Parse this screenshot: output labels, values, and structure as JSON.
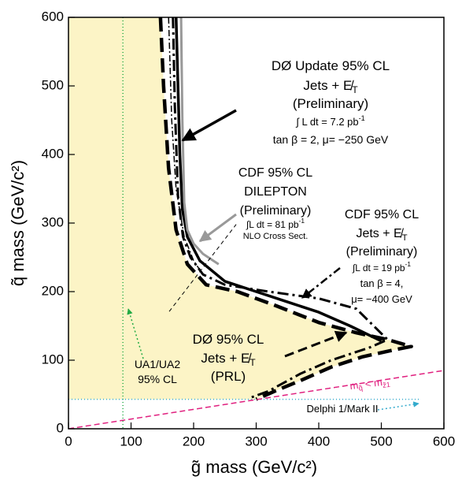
{
  "chart_data": {
    "type": "line",
    "xlabel": "g̃ mass (GeV/c²)",
    "ylabel": "q̃ mass (GeV/c²)",
    "xlim": [
      0,
      600
    ],
    "ylim": [
      0,
      600
    ],
    "xticks": [
      0,
      100,
      200,
      300,
      400,
      500,
      600
    ],
    "yticks": [
      0,
      100,
      200,
      300,
      400,
      500,
      600
    ],
    "region_color": "#fcf4c6",
    "series": [
      {
        "color": "#000000",
        "width": 3.5,
        "dash": "none",
        "x": [
          172,
          175,
          178,
          182,
          190,
          210,
          250,
          300,
          350,
          400,
          450,
          500
        ],
        "values": [
          600,
          500,
          400,
          320,
          280,
          245,
          215,
          200,
          185,
          170,
          150,
          128
        ]
      },
      {
        "color": "#999999",
        "width": 3,
        "dash": "none",
        "x": [
          180,
          182,
          185,
          190,
          200,
          215,
          240
        ],
        "values": [
          600,
          450,
          330,
          290,
          270,
          255,
          240
        ]
      },
      {
        "color": "#000000",
        "width": 3,
        "dash": "14 5 3 5",
        "x": [
          167,
          170,
          175,
          183,
          195,
          215,
          250,
          320,
          400,
          460,
          510,
          480,
          420,
          370,
          320,
          290
        ],
        "values": [
          600,
          470,
          340,
          280,
          250,
          225,
          210,
          200,
          190,
          175,
          130,
          118,
          100,
          80,
          55,
          45
        ]
      },
      {
        "color": "#000000",
        "width": 1.5,
        "dash": "8 3 2 3",
        "x": [
          160,
          165,
          172,
          185,
          200,
          215
        ],
        "values": [
          600,
          450,
          350,
          280,
          245,
          225
        ]
      },
      {
        "color": "#000000",
        "width": 4.5,
        "dash": "18 8",
        "x": [
          147,
          152,
          160,
          172,
          190,
          220,
          270,
          330,
          400,
          460,
          510,
          548,
          520,
          470,
          420,
          370,
          330,
          300
        ],
        "values": [
          600,
          500,
          380,
          290,
          240,
          210,
          200,
          180,
          155,
          140,
          130,
          120,
          115,
          105,
          90,
          70,
          55,
          43
        ]
      },
      {
        "color": "#000000",
        "width": 1,
        "dash": "5 4",
        "x": [
          161,
          268
        ],
        "values": [
          171,
          298
        ]
      },
      {
        "color": "#22aa44",
        "width": 1.5,
        "dash": "1 3",
        "x": [
          87,
          87
        ],
        "values": [
          600,
          0
        ]
      },
      {
        "color": "#33aacc",
        "width": 1.5,
        "dash": "1 3",
        "x": [
          0,
          560
        ],
        "values": [
          43,
          43
        ]
      },
      {
        "color": "#e0207f",
        "width": 1.5,
        "dash": "7 4",
        "x": [
          0,
          600
        ],
        "values": [
          0,
          85
        ]
      }
    ],
    "annotations": [
      {
        "color": "#000000",
        "lines": [
          [
            {
              "t": "DØ Update 95% CL"
            }
          ],
          [
            {
              "t": "Jets + E̸"
            },
            {
              "t": "T",
              "sub": true
            }
          ],
          [
            {
              "t": "(Preliminary)"
            }
          ],
          [
            {
              "t": "∫ L dt = 7.2 pb"
            },
            {
              "t": "-1",
              "sup": true
            }
          ],
          [
            {
              "t": "tan β = 2, μ= −250 GeV"
            }
          ]
        ]
      },
      {
        "color": "#000000",
        "lines": [
          [
            {
              "t": "CDF 95% CL"
            }
          ],
          [
            {
              "t": "DILEPTON"
            }
          ],
          [
            {
              "t": "(Preliminary)"
            }
          ],
          [
            {
              "t": "∫L dt = 81 pb"
            },
            {
              "t": "-1",
              "sup": true
            }
          ],
          [
            {
              "t": "NLO Cross Sect."
            }
          ]
        ]
      },
      {
        "color": "#000000",
        "lines": [
          [
            {
              "t": "CDF 95% CL"
            }
          ],
          [
            {
              "t": "Jets + E̸"
            },
            {
              "t": "T",
              "sub": true
            }
          ],
          [
            {
              "t": "(Preliminary)"
            }
          ],
          [
            {
              "t": "∫L dt = 19 pb"
            },
            {
              "t": "-1",
              "sup": true
            }
          ],
          [
            {
              "t": "tan β = 4,"
            }
          ],
          [
            {
              "t": "μ= −400 GeV"
            }
          ]
        ]
      },
      {
        "color": "#000000",
        "lines": [
          [
            {
              "t": "DØ 95% CL"
            }
          ],
          [
            {
              "t": "Jets + E̸"
            },
            {
              "t": "T",
              "sub": true
            }
          ],
          [
            {
              "t": "(PRL)"
            }
          ]
        ]
      },
      {
        "color": "#000000",
        "lines": [
          [
            {
              "t": "UA1/UA2"
            }
          ],
          [
            {
              "t": "95% CL"
            }
          ]
        ]
      },
      {
        "color": "#e0207f",
        "lines": [
          [
            {
              "t": "m"
            },
            {
              "t": "q̃",
              "sub": true
            },
            {
              "t": " < m"
            },
            {
              "t": "z̃1",
              "sub": true
            }
          ]
        ]
      },
      {
        "color": "#000000",
        "lines": [
          [
            {
              "t": "Delphi 1/Mark II"
            }
          ]
        ]
      }
    ]
  }
}
